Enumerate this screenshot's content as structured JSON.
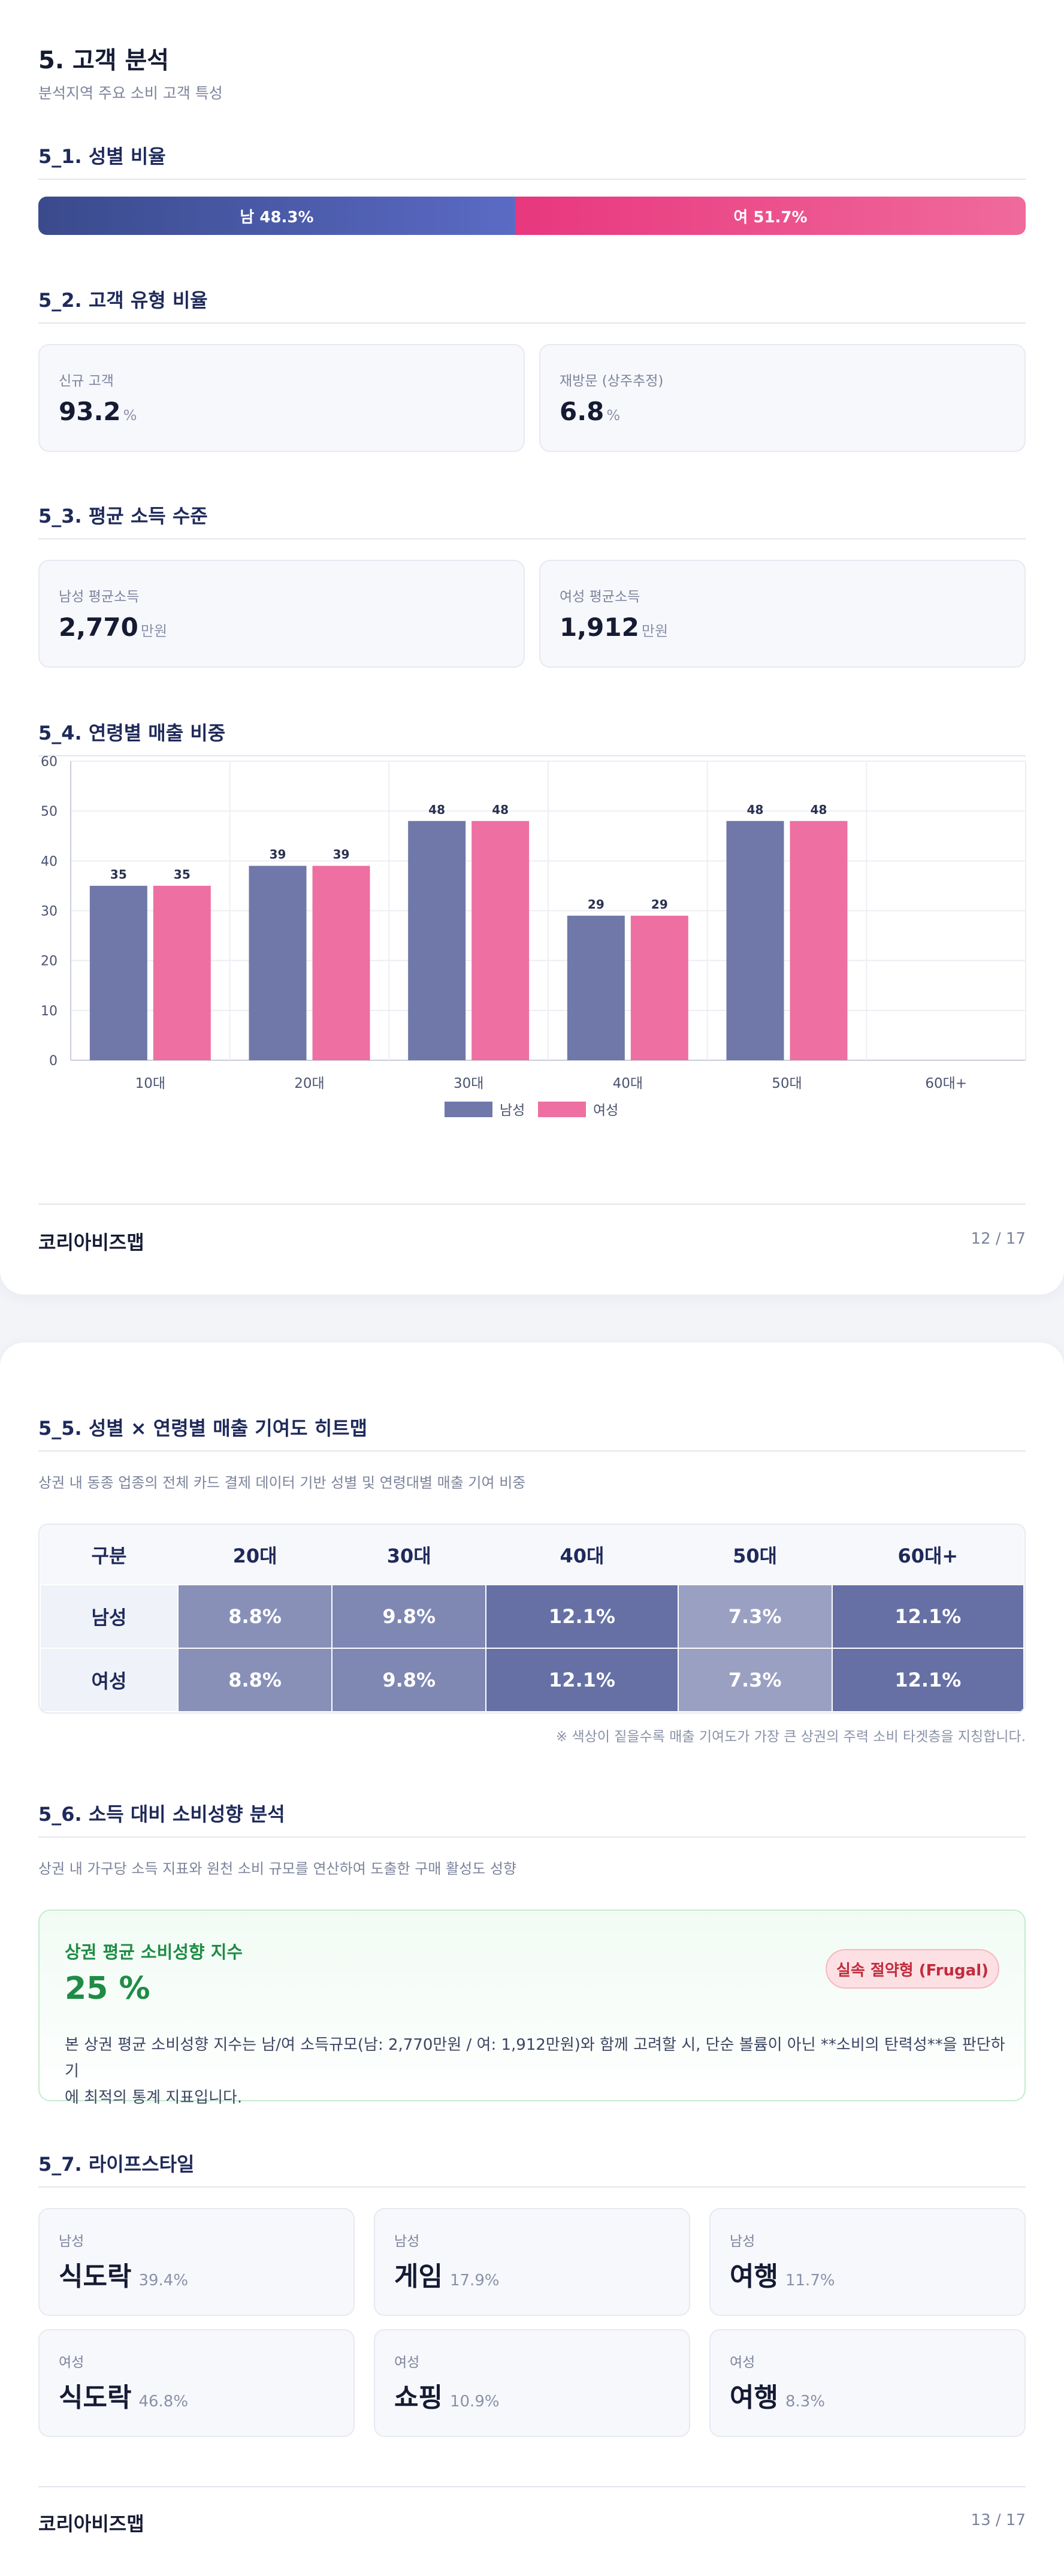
{
  "page1": {
    "title": "5. 고객 분석",
    "subtitle": "분석지역 주요 소비 고객 특성",
    "gender_ratio": {
      "heading": "5_1. 성별 비율",
      "male_label": "남 48.3%",
      "female_label": "여 51.7%",
      "male_share": 48.3,
      "female_share": 51.7,
      "male_color": "#4453a6",
      "female_color": "#ec4d8b"
    },
    "customer_type": {
      "heading": "5_2. 고객 유형 비율",
      "new_label": "신규 고객",
      "new_value": "93.2",
      "new_unit": "%",
      "repeat_label": "재방문 (상주추정)",
      "repeat_value": "6.8",
      "repeat_unit": "%"
    },
    "income": {
      "heading": "5_3. 평균 소득 수준",
      "male_label": "남성 평균소득",
      "male_value": "2,770",
      "male_unit": "만원",
      "female_label": "여성 평균소득",
      "female_value": "1,912",
      "female_unit": "만원"
    },
    "age_chart_heading": "5_4. 연령별 매출 비중",
    "footer": {
      "brand": "코리아비즈맵",
      "page": "12 / 17"
    }
  },
  "chart_data": {
    "type": "bar",
    "categories": [
      "10대",
      "20대",
      "30대",
      "40대",
      "50대",
      "60대+"
    ],
    "series": [
      {
        "name": "남성",
        "values": [
          35,
          39,
          48,
          29,
          48,
          null
        ],
        "color": "#6f78a8"
      },
      {
        "name": "여성",
        "values": [
          35,
          39,
          48,
          29,
          48,
          null
        ],
        "color": "#ee6fa1"
      }
    ],
    "ylim": [
      0,
      60
    ],
    "yticks": [
      0,
      10,
      20,
      30,
      40,
      50,
      60
    ],
    "grid": true,
    "legend": "bottom-center",
    "data_labels": true
  },
  "page2": {
    "heatmap": {
      "heading": "5_5. 성별 × 연령별 매출 기여도 히트맵",
      "description": "상권 내 동종 업종의 전체 카드 결제 데이터 기반 성별 및 연령대별 매출 기여 비중",
      "corner": "구분",
      "columns": [
        "20대",
        "30대",
        "40대",
        "50대",
        "60대+"
      ],
      "rows": [
        {
          "label": "남성",
          "cells": [
            "8.8%",
            "9.8%",
            "12.1%",
            "7.3%",
            "12.1%"
          ]
        },
        {
          "label": "여성",
          "cells": [
            "8.8%",
            "9.8%",
            "12.1%",
            "7.3%",
            "12.1%"
          ]
        }
      ],
      "cell_colors": [
        "#8890b8",
        "#7f87b3",
        "#6670a4",
        "#9aa0c2",
        "#6670a4"
      ],
      "note": "※ 색상이 짙을수록 매출 기여도가 가장 큰 상권의 주력 소비 타겟층을 지칭합니다."
    },
    "spending": {
      "heading": "5_6. 소득 대비 소비성향 분석",
      "description": "상권 내 가구당 소득 지표와 원천 소비 규모를 연산하여 도출한 구매 활성도 성향",
      "index_title": "상권 평균 소비성향 지수",
      "index_value": "25 %",
      "badge": "실속 절약형 (Frugal)",
      "desc_line1": "본 상권 평균 소비성향 지수는 남/여 소득규모(남: 2,770만원 / 여: 1,912만원)와 함께 고려할 시, 단순 볼륨이 아닌 **소비의 탄력성**을 판단하기",
      "desc_line2": "에 최적의 통계 지표입니다."
    },
    "lifestyle": {
      "heading": "5_7. 라이프스타일",
      "items": [
        {
          "gender": "남성",
          "name": "식도락",
          "pct": "39.4%"
        },
        {
          "gender": "남성",
          "name": "게임",
          "pct": "17.9%"
        },
        {
          "gender": "남성",
          "name": "여행",
          "pct": "11.7%"
        },
        {
          "gender": "여성",
          "name": "식도락",
          "pct": "46.8%"
        },
        {
          "gender": "여성",
          "name": "쇼핑",
          "pct": "10.9%"
        },
        {
          "gender": "여성",
          "name": "여행",
          "pct": "8.3%"
        }
      ]
    },
    "footer": {
      "brand": "코리아비즈맵",
      "page": "13 / 17"
    }
  }
}
